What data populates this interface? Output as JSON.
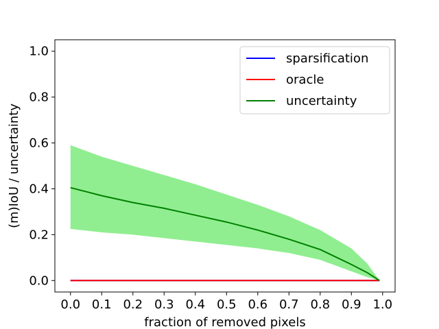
{
  "chart_data": {
    "type": "line",
    "title": "",
    "xlabel": "fraction of removed pixels",
    "ylabel": "(m)IoU / uncertainty",
    "xlim": [
      -0.05,
      1.04
    ],
    "ylim": [
      -0.05,
      1.05
    ],
    "xticks": [
      0.0,
      0.1,
      0.2,
      0.3,
      0.4,
      0.5,
      0.6,
      0.7,
      0.8,
      0.9,
      1.0
    ],
    "xtick_labels": [
      "0.0",
      "0.1",
      "0.2",
      "0.3",
      "0.4",
      "0.5",
      "0.6",
      "0.7",
      "0.8",
      "0.9",
      "1.0"
    ],
    "yticks": [
      0.0,
      0.2,
      0.4,
      0.6,
      0.8,
      1.0
    ],
    "ytick_labels": [
      "0.0",
      "0.2",
      "0.4",
      "0.6",
      "0.8",
      "1.0"
    ],
    "grid": false,
    "legend": {
      "placement": "top-right",
      "entries": [
        "sparsification",
        "oracle",
        "uncertainty"
      ]
    },
    "x": [
      0.0,
      0.1,
      0.2,
      0.3,
      0.4,
      0.5,
      0.6,
      0.7,
      0.8,
      0.9,
      0.95,
      0.99
    ],
    "series": [
      {
        "name": "sparsification",
        "color": "#0000ff",
        "values": [
          0.0,
          0.0,
          0.0,
          0.0,
          0.0,
          0.0,
          0.0,
          0.0,
          0.0,
          0.0,
          0.0,
          0.0
        ]
      },
      {
        "name": "oracle",
        "color": "#ff0000",
        "values": [
          0.0,
          0.0,
          0.0,
          0.0,
          0.0,
          0.0,
          0.0,
          0.0,
          0.0,
          0.0,
          0.0,
          0.0
        ]
      },
      {
        "name": "uncertainty",
        "color": "#008000",
        "values": [
          0.405,
          0.37,
          0.34,
          0.315,
          0.285,
          0.255,
          0.22,
          0.18,
          0.135,
          0.07,
          0.035,
          0.0
        ],
        "band_upper": [
          0.59,
          0.54,
          0.5,
          0.46,
          0.42,
          0.375,
          0.33,
          0.28,
          0.22,
          0.14,
          0.075,
          0.0
        ],
        "band_lower": [
          0.225,
          0.21,
          0.2,
          0.185,
          0.17,
          0.155,
          0.14,
          0.12,
          0.09,
          0.04,
          0.015,
          0.0
        ],
        "band_color": "#90ee90"
      }
    ]
  }
}
